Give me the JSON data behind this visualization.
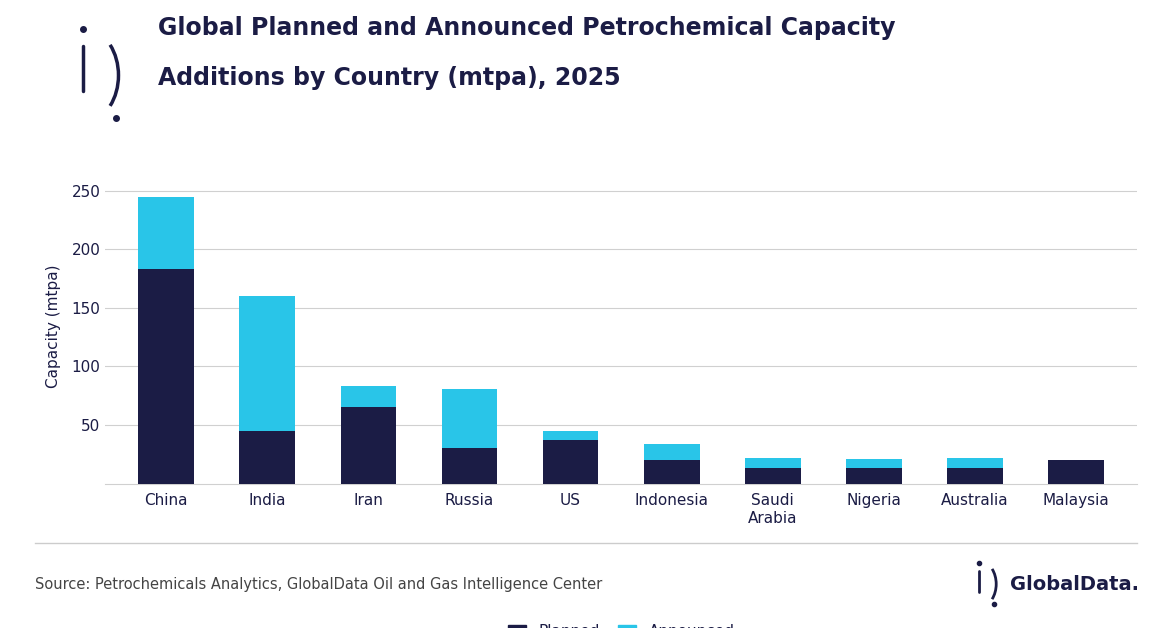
{
  "categories": [
    "China",
    "India",
    "Iran",
    "Russia",
    "US",
    "Indonesia",
    "Saudi\nArabia",
    "Nigeria",
    "Australia",
    "Malaysia"
  ],
  "planned": [
    183,
    45,
    65,
    30,
    37,
    20,
    13,
    13,
    13,
    20
  ],
  "announced": [
    62,
    115,
    18,
    51,
    8,
    14,
    9,
    8,
    9,
    0
  ],
  "planned_color": "#1b1c45",
  "announced_color": "#29c5e8",
  "title_line1": "Global Planned and Announced Petrochemical Capacity",
  "title_line2": "Additions by Country (mtpa), 2025",
  "ylabel": "Capacity (mtpa)",
  "ylim": [
    0,
    268
  ],
  "yticks": [
    50,
    100,
    150,
    200,
    250
  ],
  "legend_planned": "Planned",
  "legend_announced": "Announced",
  "source_text": "Source: Petrochemicals Analytics, GlobalData Oil and Gas Intelligence Center",
  "globaldata_text": "GlobalData.",
  "background_color": "#ffffff",
  "plot_bg_color": "#ffffff",
  "grid_color": "#d0d0d0",
  "title_color": "#1b1c45",
  "axis_label_color": "#1b1c45",
  "tick_label_color": "#1b1c45",
  "footer_line_color": "#cccccc",
  "title_fontsize": 17,
  "ylabel_fontsize": 11,
  "tick_fontsize": 11,
  "legend_fontsize": 11,
  "source_fontsize": 10.5,
  "globaldata_fontsize": 14
}
